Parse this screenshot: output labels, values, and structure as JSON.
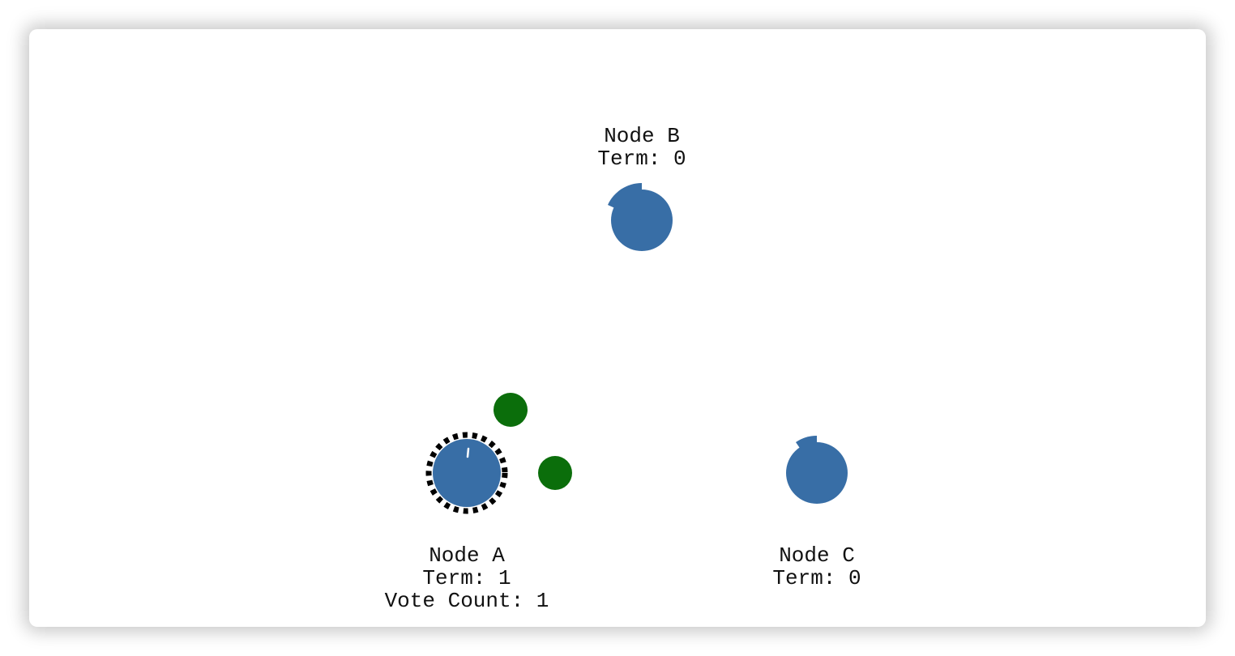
{
  "colors": {
    "node_fill": "#386ea6",
    "vote_message": "#0b6e0b",
    "candidate_ring": "#000000",
    "label_text": "#111111",
    "background": "#ffffff"
  },
  "nodes": {
    "a": {
      "name": "Node A",
      "term": "Term: 1",
      "votes": "Vote Count: 1",
      "state": "candidate"
    },
    "b": {
      "name": "Node B",
      "term": "Term: 0",
      "state": "follower"
    },
    "c": {
      "name": "Node C",
      "term": "Term: 0",
      "state": "follower"
    }
  },
  "messages": {
    "count": 2,
    "type": "vote"
  }
}
